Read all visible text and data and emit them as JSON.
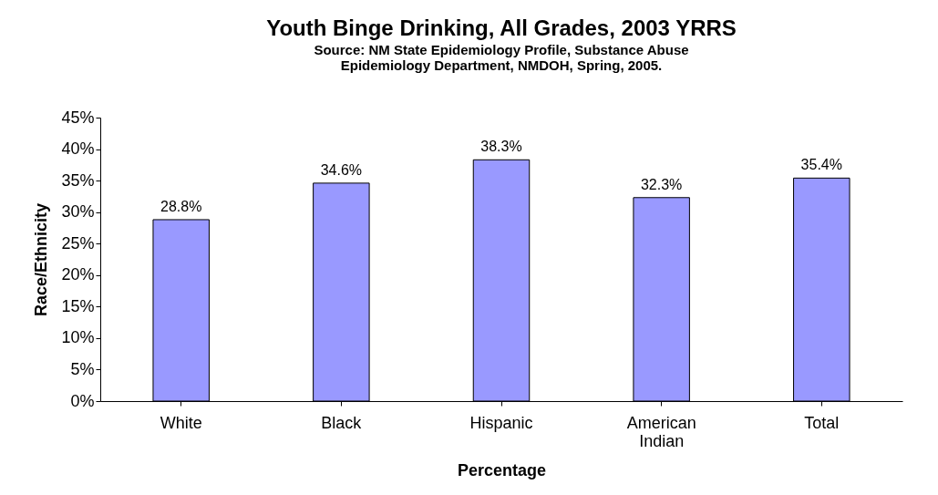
{
  "chart_data": {
    "type": "bar",
    "title": "Youth Binge Drinking, All Grades, 2003 YRRS",
    "subtitle": "Source: NM State Epidemiology Profile, Substance Abuse Epidemiology Department, NMDOH, Spring, 2005.",
    "xlabel": "Percentage",
    "ylabel": "Race/Ethnicity",
    "categories": [
      "White",
      "Black",
      "Hispanic",
      "American Indian",
      "Total"
    ],
    "values": [
      28.8,
      34.6,
      38.3,
      32.3,
      35.4
    ],
    "value_labels": [
      "28.8%",
      "34.6%",
      "38.3%",
      "32.3%",
      "35.4%"
    ],
    "color": "#9999ff",
    "ylim": [
      0,
      45
    ],
    "yticks": [
      {
        "value": 0,
        "label": "0%"
      },
      {
        "value": 5,
        "label": "5%"
      },
      {
        "value": 10,
        "label": "10%"
      },
      {
        "value": 15,
        "label": "15%"
      },
      {
        "value": 20,
        "label": "20%"
      },
      {
        "value": 25,
        "label": "25%"
      },
      {
        "value": 30,
        "label": "30%"
      },
      {
        "value": 35,
        "label": "35%"
      },
      {
        "value": 40,
        "label": "40%"
      },
      {
        "value": 45,
        "label": "45%"
      }
    ],
    "grid": false
  }
}
